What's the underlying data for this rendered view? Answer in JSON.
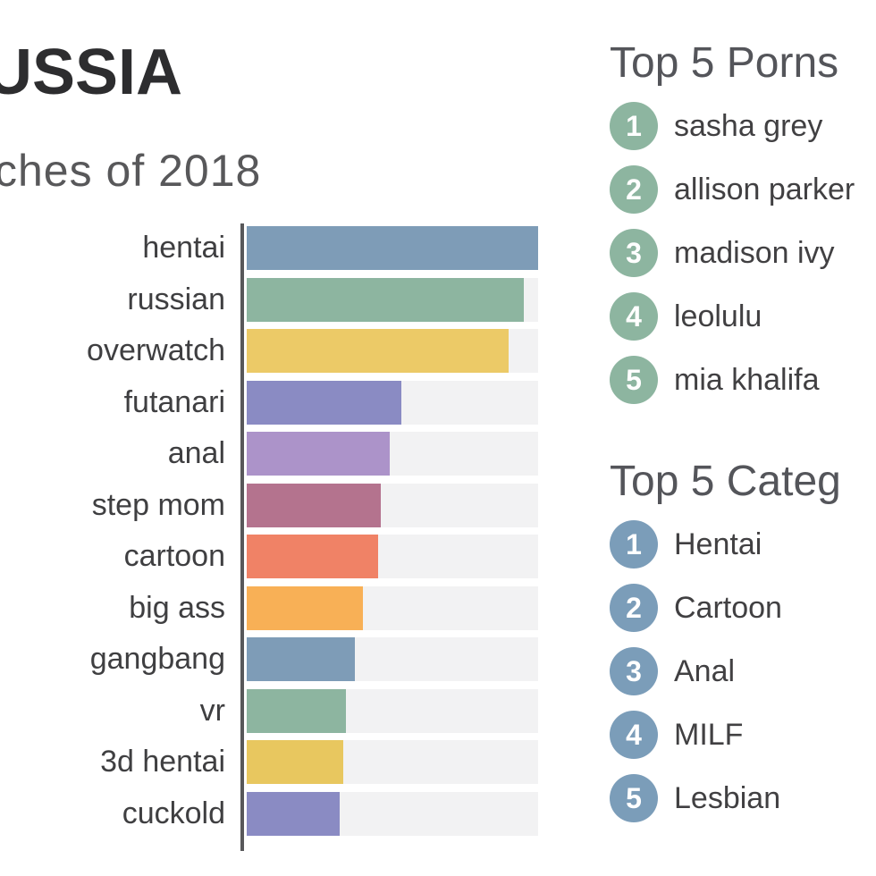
{
  "page": {
    "background": "#ffffff",
    "title_fragment": "USSIA",
    "subtitle_fragment": "ches of 2018"
  },
  "colors": {
    "title_text": "#2d2d2f",
    "subtitle_text": "#58585a",
    "bar_label_text": "#3f3f41",
    "heading_text": "#54555a",
    "item_text": "#414042",
    "axis": "#58585a",
    "bar_track": "#f2f2f3",
    "badge_green": "#8db5a0",
    "badge_blue": "#7b9db9"
  },
  "chart_data": {
    "type": "bar",
    "orientation": "horizontal",
    "title": "ches of 2018",
    "xlabel": "",
    "ylabel": "",
    "grid": false,
    "value_labels": false,
    "xlim_percent_of_max": [
      0,
      100
    ],
    "categories": [
      "hentai",
      "russian",
      "overwatch",
      "futanari",
      "anal",
      "step mom",
      "cartoon",
      "big ass",
      "gangbang",
      "vr",
      "3d hentai",
      "cuckold"
    ],
    "values_percent_of_max": [
      100,
      95,
      90,
      53,
      49,
      46,
      45,
      40,
      37,
      34,
      33,
      32
    ],
    "bar_colors": [
      "#7e9cb7",
      "#8db5a0",
      "#ecca67",
      "#8a8bc3",
      "#ac93c9",
      "#b4738e",
      "#f08266",
      "#f8b056",
      "#7e9cb7",
      "#8db5a0",
      "#e8c75f",
      "#8a8bc3"
    ]
  },
  "lists": [
    {
      "heading_fragment": "Top 5 Porns",
      "badge_color": "#8db5a0",
      "items": [
        {
          "rank": "1",
          "name": "sasha grey"
        },
        {
          "rank": "2",
          "name": "allison parker"
        },
        {
          "rank": "3",
          "name": "madison ivy"
        },
        {
          "rank": "4",
          "name": "leolulu"
        },
        {
          "rank": "5",
          "name": "mia khalifa"
        }
      ]
    },
    {
      "heading_fragment": "Top 5 Categ",
      "badge_color": "#7b9db9",
      "items": [
        {
          "rank": "1",
          "name": "Hentai"
        },
        {
          "rank": "2",
          "name": "Cartoon"
        },
        {
          "rank": "3",
          "name": "Anal"
        },
        {
          "rank": "4",
          "name": "MILF"
        },
        {
          "rank": "5",
          "name": "Lesbian"
        }
      ]
    }
  ]
}
